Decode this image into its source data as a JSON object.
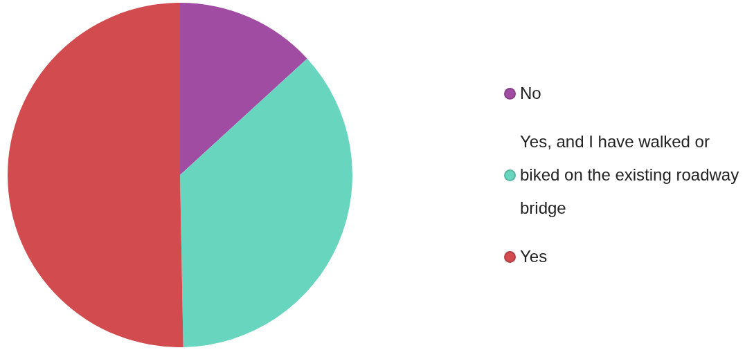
{
  "chart_data": {
    "type": "pie",
    "categories": [
      "No",
      "Yes, and I have walked or biked on the existing roadway bridge",
      "Yes"
    ],
    "values": [
      13.2,
      36.5,
      50.3
    ],
    "colors": [
      "#a04ca3",
      "#68d5bf",
      "#d14b4f"
    ],
    "legend": "right"
  }
}
